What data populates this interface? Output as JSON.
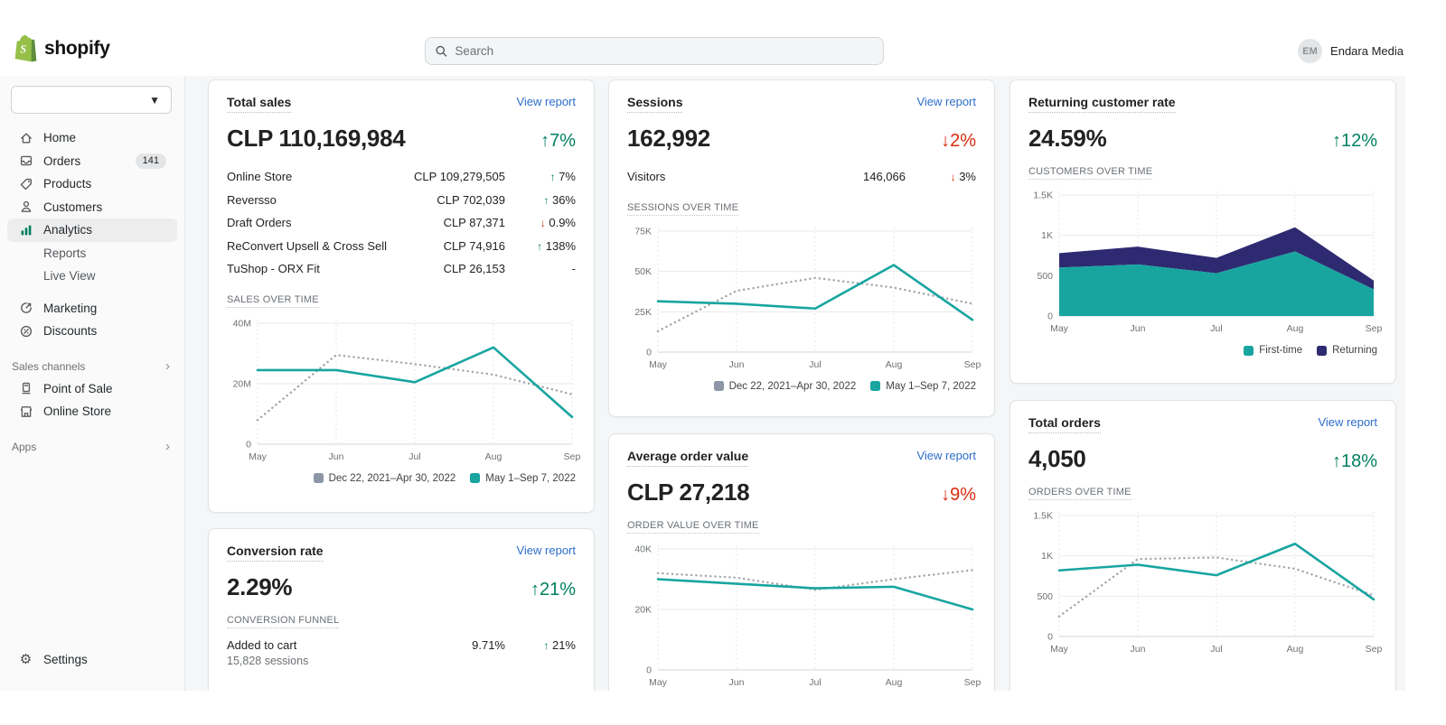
{
  "header": {
    "brand": "shopify",
    "search_placeholder": "Search",
    "user_initials": "EM",
    "user_name": "Endara Media"
  },
  "sidebar": {
    "nav": [
      {
        "label": "Home"
      },
      {
        "label": "Orders",
        "badge": "141"
      },
      {
        "label": "Products"
      },
      {
        "label": "Customers"
      },
      {
        "label": "Analytics",
        "active": true
      },
      {
        "label": "Reports",
        "sub": true
      },
      {
        "label": "Live View",
        "sub": true
      },
      {
        "label": "Marketing"
      },
      {
        "label": "Discounts"
      }
    ],
    "sales_channels_label": "Sales channels",
    "channels": [
      {
        "label": "Point of Sale"
      },
      {
        "label": "Online Store"
      }
    ],
    "apps_label": "Apps",
    "settings_label": "Settings"
  },
  "cards": {
    "total_sales": {
      "title": "Total sales",
      "view_report": "View report",
      "value": "CLP 110,169,984",
      "delta": "↑7%",
      "delta_dir": "up",
      "rows": [
        {
          "label": "Online Store",
          "value": "CLP 109,279,505",
          "arrow": "↑",
          "dir": "up",
          "pct": "7%"
        },
        {
          "label": "Reversso",
          "value": "CLP 702,039",
          "arrow": "↑",
          "dir": "up",
          "pct": "36%"
        },
        {
          "label": "Draft Orders",
          "value": "CLP 87,371",
          "arrow": "↓",
          "dir": "down",
          "pct": "0.9%"
        },
        {
          "label": "ReConvert Upsell & Cross Sell",
          "value": "CLP 74,916",
          "arrow": "↑",
          "dir": "up",
          "pct": "138%"
        },
        {
          "label": "TuShop - ORX Fit",
          "value": "CLP 26,153",
          "arrow": "",
          "dir": "none",
          "pct": "-"
        }
      ],
      "section": "SALES OVER TIME"
    },
    "sessions": {
      "title": "Sessions",
      "view_report": "View report",
      "value": "162,992",
      "delta": "↓2%",
      "delta_dir": "down",
      "rows": [
        {
          "label": "Visitors",
          "value": "146,066",
          "arrow": "↓",
          "dir": "down",
          "pct": "3%"
        }
      ],
      "section": "SESSIONS OVER TIME"
    },
    "returning": {
      "title": "Returning customer rate",
      "value": "24.59%",
      "delta": "↑12%",
      "delta_dir": "up",
      "section": "CUSTOMERS OVER TIME"
    },
    "conversion": {
      "title": "Conversion rate",
      "view_report": "View report",
      "value": "2.29%",
      "delta": "↑21%",
      "delta_dir": "up",
      "section": "CONVERSION FUNNEL",
      "rows": [
        {
          "label": "Added to cart",
          "sub": "15,828 sessions",
          "value": "9.71%",
          "arrow": "↑",
          "dir": "up",
          "pct": "21%"
        }
      ]
    },
    "avg_order": {
      "title": "Average order value",
      "view_report": "View report",
      "value": "CLP 27,218",
      "delta": "↓9%",
      "delta_dir": "down",
      "section": "ORDER VALUE OVER TIME"
    },
    "total_orders": {
      "title": "Total orders",
      "view_report": "View report",
      "value": "4,050",
      "delta": "↑18%",
      "delta_dir": "up",
      "section": "ORDERS OVER TIME"
    }
  },
  "colors": {
    "teal": "#18a5a0",
    "navy": "#2e2a72",
    "dotted_line": "#a0a4a8",
    "legend_prev": "#8c96a5",
    "green": "#008060",
    "red": "#d72c0d",
    "link": "#2c6ecb"
  },
  "chart_data": [
    {
      "id": "sales_over_time",
      "type": "line",
      "title": "SALES OVER TIME",
      "x": [
        "May",
        "Jun",
        "Jul",
        "Aug",
        "Sep"
      ],
      "y_ticks": [
        0,
        20,
        40
      ],
      "y_tick_labels": [
        "0",
        "20M",
        "40M"
      ],
      "ylim": [
        0,
        40
      ],
      "unit": "CLP millions",
      "legend": true,
      "legend_position": "bottom-right",
      "series": [
        {
          "name": "Dec 22, 2021–Apr 30, 2022",
          "style": "dotted",
          "color": "#a0a4a8",
          "legend_color": "#8c96a5",
          "values": [
            8,
            29.5,
            26.5,
            23,
            16.5
          ]
        },
        {
          "name": "May 1–Sep 7, 2022",
          "style": "solid",
          "color": "#18a5a0",
          "values": [
            24.5,
            24.5,
            20.5,
            32,
            9
          ]
        }
      ]
    },
    {
      "id": "sessions_over_time",
      "type": "line",
      "title": "SESSIONS OVER TIME",
      "x": [
        "May",
        "Jun",
        "Jul",
        "Aug",
        "Sep"
      ],
      "y_ticks": [
        0,
        25,
        50,
        75
      ],
      "y_tick_labels": [
        "0",
        "25K",
        "50K",
        "75K"
      ],
      "ylim": [
        0,
        75
      ],
      "unit": "sessions (thousands)",
      "legend": true,
      "legend_position": "bottom-right",
      "series": [
        {
          "name": "Dec 22, 2021–Apr 30, 2022",
          "style": "dotted",
          "color": "#a0a4a8",
          "legend_color": "#8c96a5",
          "values": [
            13,
            38,
            46,
            40,
            30
          ]
        },
        {
          "name": "May 1–Sep 7, 2022",
          "style": "solid",
          "color": "#18a5a0",
          "values": [
            31.5,
            30,
            27,
            54,
            20
          ]
        }
      ]
    },
    {
      "id": "customers_over_time",
      "type": "area_stacked",
      "title": "CUSTOMERS OVER TIME",
      "x": [
        "May",
        "Jun",
        "Jul",
        "Aug",
        "Sep"
      ],
      "y_ticks": [
        0,
        500,
        1000,
        1500
      ],
      "y_tick_labels": [
        "0",
        "500",
        "1K",
        "1.5K"
      ],
      "ylim": [
        0,
        1500
      ],
      "unit": "customers",
      "legend": true,
      "legend_position": "bottom-right",
      "series": [
        {
          "name": "First-time",
          "style": "area",
          "color": "#18a5a0",
          "values": [
            600,
            640,
            530,
            800,
            330
          ]
        },
        {
          "name": "Returning",
          "style": "area",
          "color": "#2e2a72",
          "values": [
            180,
            220,
            190,
            300,
            110
          ]
        }
      ]
    },
    {
      "id": "order_value_over_time",
      "type": "line",
      "title": "ORDER VALUE OVER TIME",
      "x": [
        "May",
        "Jun",
        "Jul",
        "Aug",
        "Sep"
      ],
      "y_ticks": [
        0,
        20,
        40
      ],
      "y_tick_labels": [
        "0",
        "20K",
        "40K"
      ],
      "ylim": [
        0,
        40
      ],
      "unit": "CLP thousands",
      "legend": false,
      "series": [
        {
          "name": "Dec 22, 2021–Apr 30, 2022",
          "style": "dotted",
          "color": "#a0a4a8",
          "legend_color": "#8c96a5",
          "values": [
            32,
            30.5,
            26.5,
            30,
            33
          ]
        },
        {
          "name": "May 1–Sep 7, 2022",
          "style": "solid",
          "color": "#18a5a0",
          "values": [
            30,
            28.5,
            27,
            27.5,
            20
          ]
        }
      ]
    },
    {
      "id": "orders_over_time",
      "type": "line",
      "title": "ORDERS OVER TIME",
      "x": [
        "May",
        "Jun",
        "Jul",
        "Aug",
        "Sep"
      ],
      "y_ticks": [
        0,
        500,
        1000,
        1500
      ],
      "y_tick_labels": [
        "0",
        "500",
        "1K",
        "1.5K"
      ],
      "ylim": [
        0,
        1500
      ],
      "unit": "orders",
      "legend": false,
      "series": [
        {
          "name": "Dec 22, 2021–Apr 30, 2022",
          "style": "dotted",
          "color": "#a0a4a8",
          "legend_color": "#8c96a5",
          "values": [
            250,
            960,
            980,
            840,
            510
          ]
        },
        {
          "name": "May 1–Sep 7, 2022",
          "style": "solid",
          "color": "#18a5a0",
          "values": [
            820,
            890,
            760,
            1150,
            460
          ]
        }
      ]
    }
  ]
}
